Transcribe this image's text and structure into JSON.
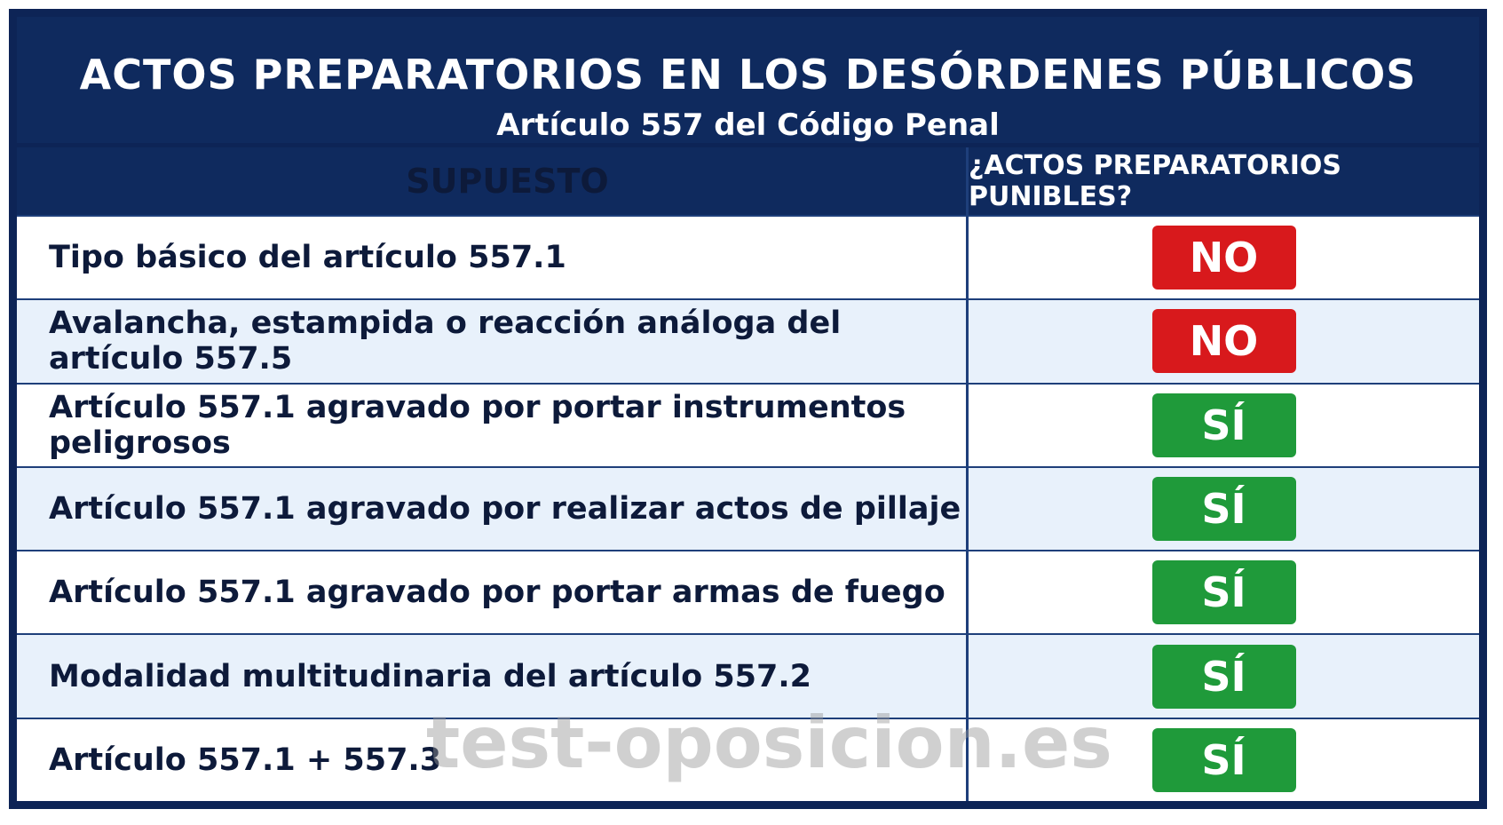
{
  "header": {
    "title": "ACTOS PREPARATORIOS EN LOS DESÓRDENES PÚBLICOS",
    "subtitle": "Artículo 557 del Código Penal"
  },
  "table": {
    "columns": [
      "SUPUESTO",
      "¿ACTOS PREPARATORIOS PUNIBLES?"
    ],
    "rows": [
      [
        "Tipo básico del artículo 557.1",
        "NO"
      ],
      [
        "Avalancha, estampida o reacción análoga del artículo 557.5",
        "NO"
      ],
      [
        "Artículo 557.1 agravado por portar instrumentos peligrosos",
        "SÍ"
      ],
      [
        "Artículo 557.1 agravado por realizar actos de pillaje",
        "SÍ"
      ],
      [
        "Artículo 557.1 agravado por portar armas de fuego",
        "SÍ"
      ],
      [
        "Modalidad multitudinaria del artículo 557.2",
        "SÍ"
      ],
      [
        "Artículo 557.1 + 557.3",
        "SÍ"
      ]
    ]
  },
  "watermark": "test-oposicion.es"
}
